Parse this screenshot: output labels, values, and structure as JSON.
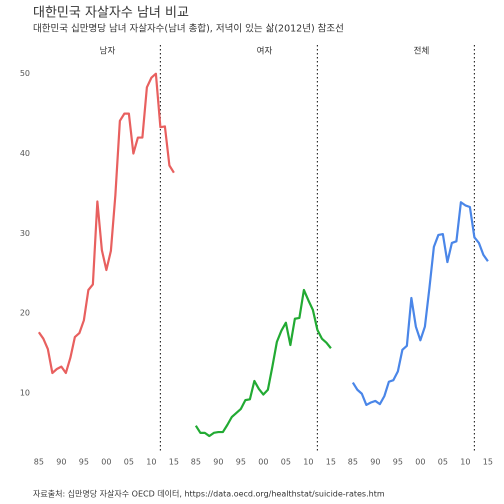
{
  "title": "대한민국 자살자수 남녀 비교",
  "subtitle": "대한민국 십만명당 남녀 자살자수(남녀 총합), 저녁이 있는 삶(2012년) 참조선",
  "caption": "자료출처: 십만명당 자살자수 OECD 데이터, https://data.oecd.org/healthstat/suicide-rates.htm",
  "chart_data": [
    {
      "type": "line",
      "title": "남자",
      "color": "#e8605f",
      "x": [
        1985,
        1986,
        1987,
        1988,
        1989,
        1990,
        1991,
        1992,
        1993,
        1994,
        1995,
        1996,
        1997,
        1998,
        1999,
        2000,
        2001,
        2002,
        2003,
        2004,
        2005,
        2006,
        2007,
        2008,
        2009,
        2010,
        2011,
        2012,
        2013,
        2014,
        2015
      ],
      "values": [
        17.6,
        16.8,
        15.5,
        12.5,
        13,
        13.3,
        12.5,
        14.4,
        17,
        17.5,
        19.1,
        22.9,
        23.6,
        34,
        27.9,
        25.4,
        27.8,
        34.8,
        44.1,
        45,
        45,
        40,
        42,
        42,
        48.3,
        49.5,
        50,
        43.3,
        43.4,
        38.5,
        37.6
      ],
      "reference_x": 2012,
      "xlim": [
        1983.7,
        2016.8
      ],
      "ylim": [
        2.6,
        53.6
      ],
      "xticks": [
        {
          "value": 1985,
          "label": "85"
        },
        {
          "value": 1990,
          "label": "90"
        },
        {
          "value": 1995,
          "label": "95"
        },
        {
          "value": 2000,
          "label": "00"
        },
        {
          "value": 2005,
          "label": "05"
        },
        {
          "value": 2010,
          "label": "10"
        },
        {
          "value": 2015,
          "label": "15"
        }
      ],
      "yticks": [
        10,
        20,
        30,
        40,
        50
      ]
    },
    {
      "type": "line",
      "title": "여자",
      "color": "#22aa33",
      "x": [
        1985,
        1986,
        1987,
        1988,
        1989,
        1990,
        1991,
        1992,
        1993,
        1994,
        1995,
        1996,
        1997,
        1998,
        1999,
        2000,
        2001,
        2002,
        2003,
        2004,
        2005,
        2006,
        2007,
        2008,
        2009,
        2010,
        2011,
        2012,
        2013,
        2014,
        2015
      ],
      "values": [
        5.9,
        5,
        5,
        4.6,
        5,
        5.1,
        5.1,
        6,
        7,
        7.5,
        8,
        9.1,
        9.2,
        11.5,
        10.5,
        9.8,
        10.4,
        13.3,
        16.4,
        17.8,
        18.8,
        16,
        19.3,
        19.4,
        22.9,
        21.6,
        20.4,
        17.9,
        16.8,
        16.3,
        15.6
      ],
      "reference_x": 2012,
      "xlim": [
        1983.7,
        2016.8
      ],
      "ylim": [
        2.6,
        53.6
      ],
      "xticks": [
        {
          "value": 1985,
          "label": "85"
        },
        {
          "value": 1990,
          "label": "90"
        },
        {
          "value": 1995,
          "label": "95"
        },
        {
          "value": 2000,
          "label": "00"
        },
        {
          "value": 2005,
          "label": "05"
        },
        {
          "value": 2010,
          "label": "10"
        },
        {
          "value": 2015,
          "label": "15"
        }
      ]
    },
    {
      "type": "line",
      "title": "전체",
      "color": "#4a86e8",
      "x": [
        1985,
        1986,
        1987,
        1988,
        1989,
        1990,
        1991,
        1992,
        1993,
        1994,
        1995,
        1996,
        1997,
        1998,
        1999,
        2000,
        2001,
        2002,
        2003,
        2004,
        2005,
        2006,
        2007,
        2008,
        2009,
        2010,
        2011,
        2012,
        2013,
        2014,
        2015
      ],
      "values": [
        11.3,
        10.4,
        9.9,
        8.5,
        8.8,
        9,
        8.6,
        9.6,
        11.4,
        11.6,
        12.7,
        15.4,
        15.9,
        21.9,
        18.3,
        16.6,
        18.3,
        23.1,
        28.3,
        29.8,
        29.9,
        26.4,
        28.8,
        29,
        33.9,
        33.5,
        33.3,
        29.5,
        28.8,
        27.3,
        26.5
      ],
      "reference_x": 2012,
      "xlim": [
        1983.7,
        2016.8
      ],
      "ylim": [
        2.6,
        53.6
      ],
      "xticks": [
        {
          "value": 1985,
          "label": "85"
        },
        {
          "value": 1990,
          "label": "90"
        },
        {
          "value": 1995,
          "label": "95"
        },
        {
          "value": 2000,
          "label": "00"
        },
        {
          "value": 2005,
          "label": "05"
        },
        {
          "value": 2010,
          "label": "10"
        },
        {
          "value": 2015,
          "label": "15"
        }
      ]
    }
  ]
}
